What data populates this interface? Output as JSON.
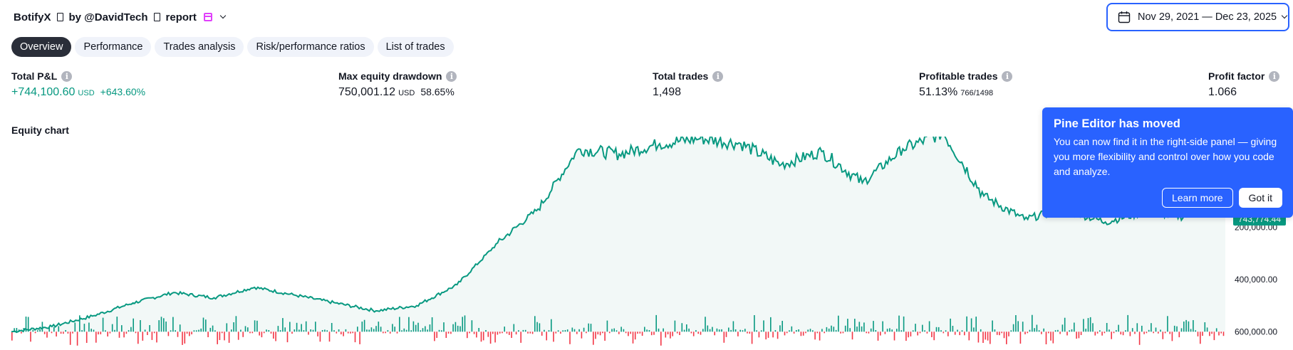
{
  "header": {
    "strategy_name": "BotifyX",
    "by_text": "by @DavidTech",
    "report_text": "report"
  },
  "date_range": {
    "label": "Nov 29, 2021 — Dec 23, 2025"
  },
  "tabs": [
    {
      "label": "Overview",
      "active": true
    },
    {
      "label": "Performance",
      "active": false
    },
    {
      "label": "Trades analysis",
      "active": false
    },
    {
      "label": "Risk/performance ratios",
      "active": false
    },
    {
      "label": "List of trades",
      "active": false
    }
  ],
  "stats": {
    "total_pnl": {
      "label": "Total P&L",
      "value": "+744,100.60",
      "unit": "USD",
      "sub": "+643.60%"
    },
    "max_drawdown": {
      "label": "Max equity drawdown",
      "value": "750,001.12",
      "unit": "USD",
      "sub": "58.65%"
    },
    "total_trades": {
      "label": "Total trades",
      "value": "1,498"
    },
    "profitable_trades": {
      "label": "Profitable trades",
      "value": "51.13%",
      "sub": "766/1498"
    },
    "profit_factor": {
      "label": "Profit factor",
      "value": "1.066"
    }
  },
  "equity_chart": {
    "label": "Equity chart",
    "last_value_badge": "743,774.44",
    "y_ticks": [
      "600,000.00",
      "400,000.00",
      "200,000.00",
      "0"
    ]
  },
  "popup": {
    "title": "Pine Editor has moved",
    "body": "You can now find it in the right-side panel — giving you more flexibility and control over how you code and analyze.",
    "learn_more": "Learn more",
    "got_it": "Got it"
  },
  "colors": {
    "equity_line": "#089981",
    "equity_fill": "#f2f8f7",
    "positive_bar": "#089981",
    "negative_bar": "#f23645",
    "accent": "#2962ff"
  },
  "chart_data": {
    "type": "area",
    "series": [
      {
        "name": "",
        "x": [
          0,
          50,
          100,
          150,
          200,
          250,
          300,
          350,
          400,
          450,
          500,
          550,
          600,
          650,
          700,
          750,
          800,
          850,
          900,
          950,
          1000,
          1050,
          1100,
          1150,
          1200,
          1250,
          1300,
          1350,
          1400,
          1450,
          1498
        ],
        "y": [
          0,
          20000,
          60000,
          110000,
          150000,
          130000,
          170000,
          140000,
          110000,
          80000,
          100000,
          180000,
          340000,
          470000,
          700000,
          680000,
          720000,
          740000,
          720000,
          640000,
          690000,
          570000,
          700000,
          760000,
          520000,
          430000,
          470000,
          420000,
          460000,
          440000,
          743774.44
        ]
      }
    ],
    "ylim": [
      -70000,
      720000
    ],
    "y_ticks": [
      0,
      200000,
      400000,
      600000
    ]
  }
}
